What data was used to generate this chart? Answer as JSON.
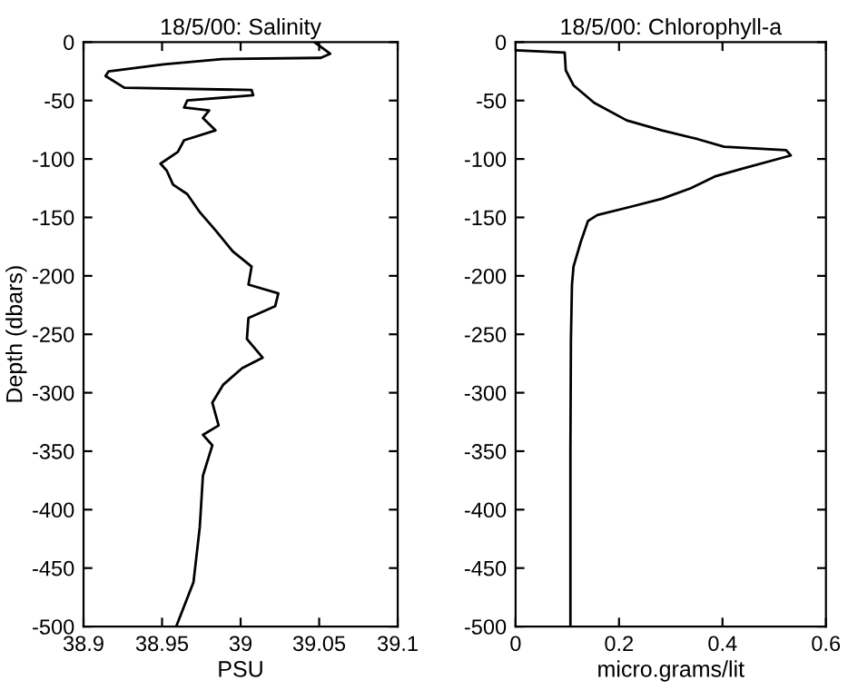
{
  "chart_data": [
    {
      "type": "line",
      "title": "18/5/00: Salinity",
      "xlabel": "PSU",
      "ylabel": "Depth (dbars)",
      "xlim": [
        38.9,
        39.1
      ],
      "xticks": [
        38.9,
        38.95,
        39,
        39.05,
        39.1
      ],
      "ylim": [
        -500,
        0
      ],
      "yticks": [
        -500,
        -450,
        -400,
        -350,
        -300,
        -250,
        -200,
        -150,
        -100,
        -50,
        0
      ],
      "grid": false,
      "series": [
        {
          "color": "#000000",
          "x": [
            39.047,
            39.057,
            39.051,
            38.988,
            38.951,
            38.916,
            38.914,
            38.926,
            39.007,
            39.008,
            38.966,
            38.964,
            38.98,
            38.976,
            38.984,
            38.964,
            38.96,
            38.949,
            38.953,
            38.957,
            38.966,
            38.974,
            38.984,
            38.995,
            39.007,
            39.005,
            39.024,
            39.022,
            39.005,
            39.004,
            39.014,
            39.001,
            38.989,
            38.982,
            38.986,
            38.976,
            38.982,
            38.976,
            38.974,
            38.97,
            38.959
          ],
          "values": [
            0,
            -10,
            -13.5,
            -14.5,
            -19,
            -25,
            -29,
            -39,
            -41,
            -45.5,
            -50,
            -56,
            -58.5,
            -65,
            -75.5,
            -84,
            -94,
            -104,
            -110,
            -122,
            -130,
            -145.5,
            -161,
            -179,
            -192,
            -207.5,
            -215,
            -226,
            -236,
            -254,
            -270,
            -279,
            -293,
            -308.5,
            -328,
            -336,
            -345,
            -371,
            -415,
            -462,
            -500
          ]
        }
      ]
    },
    {
      "type": "line",
      "title": "18/5/00: Chlorophyll-a",
      "xlabel": "micro.grams/lit",
      "xlim": [
        0,
        0.6
      ],
      "xticks": [
        0,
        0.2,
        0.4,
        0.6
      ],
      "ylim": [
        -500,
        0
      ],
      "yticks": [
        -500,
        -450,
        -400,
        -350,
        -300,
        -250,
        -200,
        -150,
        -100,
        -50,
        0
      ],
      "grid": false,
      "series": [
        {
          "color": "#000000",
          "x": [
            0.0,
            0.095,
            0.097,
            0.112,
            0.152,
            0.215,
            0.283,
            0.352,
            0.403,
            0.523,
            0.532,
            0.436,
            0.385,
            0.339,
            0.283,
            0.226,
            0.158,
            0.14,
            0.126,
            0.112,
            0.109,
            0.107,
            0.106,
            0.106
          ],
          "values": [
            -7,
            -9,
            -24,
            -37,
            -52,
            -67,
            -75.5,
            -83,
            -89.5,
            -92.5,
            -97,
            -108.5,
            -115,
            -125,
            -134,
            -140.5,
            -148,
            -153,
            -171,
            -192,
            -207.5,
            -254,
            -350,
            -500
          ]
        }
      ]
    }
  ]
}
